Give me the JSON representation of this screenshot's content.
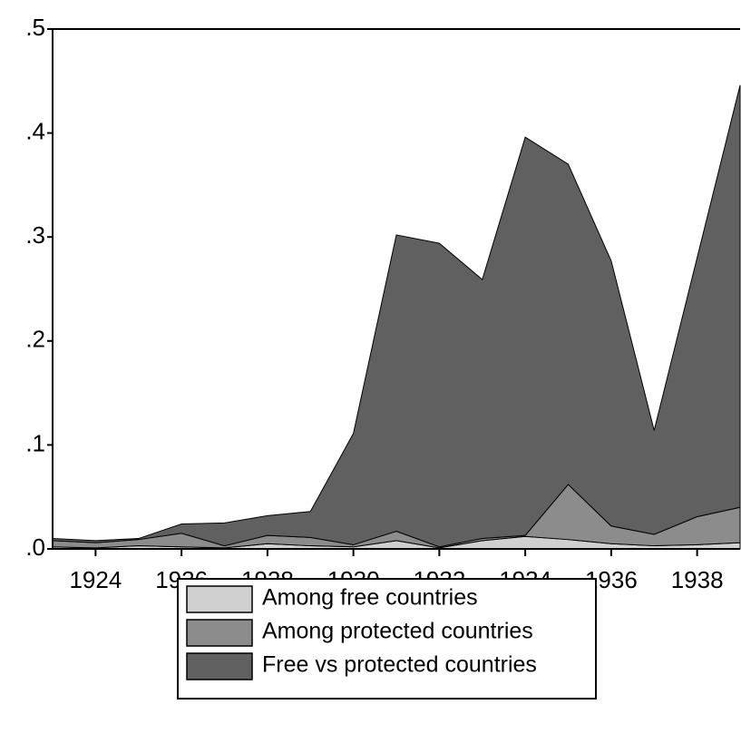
{
  "chart_data": {
    "type": "stacked_area",
    "x": [
      1923,
      1924,
      1925,
      1926,
      1927,
      1928,
      1929,
      1930,
      1931,
      1932,
      1933,
      1934,
      1935,
      1936,
      1937,
      1938,
      1939
    ],
    "xlim": [
      1923,
      1939
    ],
    "xticks": [
      1924,
      1926,
      1928,
      1930,
      1932,
      1934,
      1936,
      1938
    ],
    "ylim": [
      0,
      0.5
    ],
    "yticks": [
      {
        "value": 0,
        "label": ".0"
      },
      {
        "value": 0.1,
        "label": ".1"
      },
      {
        "value": 0.2,
        "label": ".2"
      },
      {
        "value": 0.3,
        "label": ".3"
      },
      {
        "value": 0.4,
        "label": ".4"
      },
      {
        "value": 0.5,
        "label": ".5"
      }
    ],
    "series": [
      {
        "name": "Among free countries",
        "color": "#d0d0d0",
        "values": [
          0.002,
          0.001,
          0.003,
          0.002,
          0.001,
          0.005,
          0.003,
          0.002,
          0.008,
          0.001,
          0.008,
          0.012,
          0.009,
          0.005,
          0.003,
          0.004,
          0.006
        ]
      },
      {
        "name": "Among protected countries",
        "color": "#8c8c8c",
        "values": [
          0.006,
          0.005,
          0.006,
          0.013,
          0.002,
          0.008,
          0.008,
          0.002,
          0.009,
          0.001,
          0.002,
          0.001,
          0.053,
          0.017,
          0.011,
          0.027,
          0.034
        ]
      },
      {
        "name": "Free vs protected countries",
        "color": "#606060",
        "values": [
          0.002,
          0.002,
          0.001,
          0.009,
          0.022,
          0.019,
          0.025,
          0.107,
          0.285,
          0.292,
          0.249,
          0.383,
          0.308,
          0.255,
          0.1,
          0.249,
          0.406
        ]
      }
    ]
  }
}
